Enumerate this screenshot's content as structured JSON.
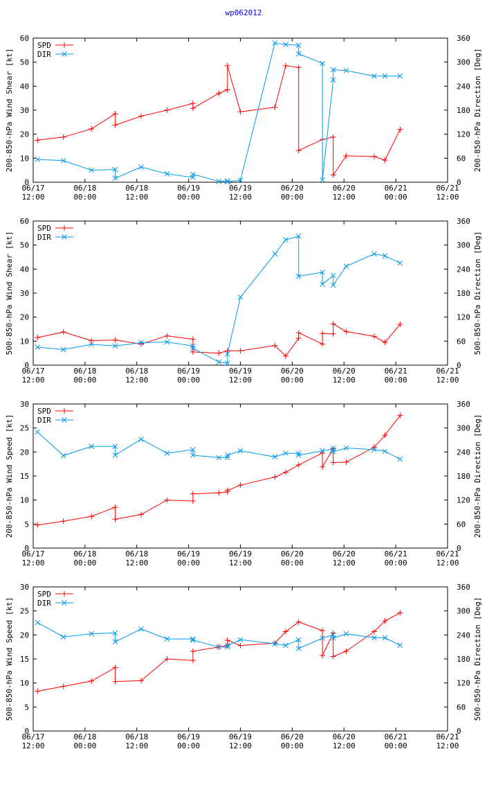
{
  "page": {
    "title": "wp062012"
  },
  "colors": {
    "spd": "#ff0000",
    "dir": "#0099ee",
    "axis": "#000000"
  },
  "chart_data": [
    {
      "type": "line",
      "title": "",
      "ylabel_left": "200-850-hPa Wind Shear [kt]",
      "ylabel_right": "200-850-hPa Direction [Deg]",
      "ylim_left": [
        0,
        60
      ],
      "yticks_left": [
        "0",
        "10",
        "20",
        "30",
        "40",
        "50",
        "60"
      ],
      "ylim_right": [
        0,
        360
      ],
      "yticks_right": [
        "0",
        "60",
        "120",
        "180",
        "240",
        "300",
        "360"
      ],
      "xlim_hours": [
        0,
        96
      ],
      "xticks": [
        {
          "date": "06/17",
          "time": "12:00"
        },
        {
          "date": "06/18",
          "time": "00:00"
        },
        {
          "date": "06/18",
          "time": "12:00"
        },
        {
          "date": "06/19",
          "time": "00:00"
        },
        {
          "date": "06/19",
          "time": "12:00"
        },
        {
          "date": "06/20",
          "time": "00:00"
        },
        {
          "date": "06/20",
          "time": "12:00"
        },
        {
          "date": "06/21",
          "time": "00:00"
        },
        {
          "date": "06/21",
          "time": "12:00"
        }
      ],
      "legend": [
        "SPD",
        "DIR"
      ],
      "series": [
        {
          "name": "SPD",
          "axis": "left",
          "x": [
            1,
            7,
            13.5,
            19,
            19,
            25,
            31,
            37,
            37,
            43,
            45,
            45,
            48,
            56,
            58.5,
            61.5,
            61.5,
            67,
            69.5,
            69.5,
            72.5,
            79,
            81.5,
            85
          ],
          "y": [
            17.5,
            18.8,
            22.2,
            28.5,
            23.8,
            27.5,
            30.0,
            32.8,
            30.8,
            37.0,
            38.5,
            48.5,
            29.3,
            31.2,
            48.5,
            47.8,
            13.2,
            17.8,
            18.8,
            3.0,
            11.0,
            10.7,
            9.2,
            22.0
          ]
        },
        {
          "name": "DIR",
          "axis": "right",
          "x": [
            1,
            7,
            13.5,
            19,
            19,
            25,
            31,
            37,
            37,
            43,
            45,
            45,
            48,
            56,
            58.5,
            61.5,
            61.5,
            67,
            67,
            69.5,
            69.5,
            72.5,
            79,
            81.5,
            85
          ],
          "y": [
            57,
            54,
            30,
            32,
            10,
            38,
            21,
            12,
            20,
            2,
            3,
            1,
            5,
            348,
            344,
            342,
            321,
            297,
            6,
            256,
            281,
            279,
            265,
            265,
            265
          ]
        }
      ]
    },
    {
      "type": "line",
      "title": "",
      "ylabel_left": "500-850-hPa Wind Shear [kt]",
      "ylabel_right": "500-850-hPa Direction [Deg]",
      "ylim_left": [
        0,
        60
      ],
      "yticks_left": [
        "0",
        "10",
        "20",
        "30",
        "40",
        "50",
        "60"
      ],
      "ylim_right": [
        0,
        360
      ],
      "yticks_right": [
        "0",
        "60",
        "120",
        "180",
        "240",
        "300",
        "360"
      ],
      "xlim_hours": [
        0,
        96
      ],
      "xticks": [
        {
          "date": "06/17",
          "time": "12:00"
        },
        {
          "date": "06/18",
          "time": "00:00"
        },
        {
          "date": "06/18",
          "time": "12:00"
        },
        {
          "date": "06/19",
          "time": "00:00"
        },
        {
          "date": "06/19",
          "time": "12:00"
        },
        {
          "date": "06/20",
          "time": "00:00"
        },
        {
          "date": "06/20",
          "time": "12:00"
        },
        {
          "date": "06/21",
          "time": "00:00"
        },
        {
          "date": "06/21",
          "time": "12:00"
        }
      ],
      "legend": [
        "SPD",
        "DIR"
      ],
      "series": [
        {
          "name": "SPD",
          "axis": "left",
          "x": [
            1,
            7,
            13.5,
            19,
            25,
            31,
            37,
            37,
            43,
            45,
            48,
            56,
            58.5,
            61.5,
            61.5,
            67,
            67,
            69.5,
            69.5,
            72.5,
            79,
            81.5,
            85
          ],
          "y": [
            11.5,
            13.8,
            10.2,
            10.5,
            8.8,
            12.2,
            10.8,
            5.5,
            5.0,
            6.0,
            6.0,
            8.2,
            3.8,
            11.2,
            13.5,
            8.8,
            13.2,
            13.0,
            17.2,
            14.0,
            12.0,
            9.5,
            17.0
          ]
        },
        {
          "name": "DIR",
          "axis": "right",
          "x": [
            1,
            7,
            13.5,
            19,
            25,
            31,
            37,
            37,
            43,
            45,
            45,
            48,
            56,
            58.5,
            61.5,
            61.5,
            67,
            67,
            69.5,
            69.5,
            72.5,
            79,
            81.5,
            85
          ],
          "y": [
            45,
            39,
            52,
            48,
            56,
            58,
            48,
            42,
            8,
            5,
            28,
            170,
            278,
            313,
            322,
            222,
            232,
            202,
            224,
            200,
            247,
            278,
            273,
            255
          ]
        }
      ]
    },
    {
      "type": "line",
      "title": "",
      "ylabel_left": "200-850-hPa Wind Speed [kt]",
      "ylabel_right": "200-850-hPa Direction [Deg]",
      "ylim_left": [
        0,
        30
      ],
      "yticks_left": [
        "0",
        "5",
        "10",
        "15",
        "20",
        "25",
        "30"
      ],
      "ylim_right": [
        0,
        360
      ],
      "yticks_right": [
        "0",
        "60",
        "120",
        "180",
        "240",
        "300",
        "360"
      ],
      "xlim_hours": [
        0,
        96
      ],
      "xticks": [
        {
          "date": "06/17",
          "time": "12:00"
        },
        {
          "date": "06/18",
          "time": "00:00"
        },
        {
          "date": "06/18",
          "time": "12:00"
        },
        {
          "date": "06/19",
          "time": "00:00"
        },
        {
          "date": "06/19",
          "time": "12:00"
        },
        {
          "date": "06/20",
          "time": "00:00"
        },
        {
          "date": "06/20",
          "time": "12:00"
        },
        {
          "date": "06/21",
          "time": "00:00"
        },
        {
          "date": "06/21",
          "time": "12:00"
        }
      ],
      "legend": [
        "SPD",
        "DIR"
      ],
      "series": [
        {
          "name": "SPD",
          "axis": "left",
          "x": [
            1,
            7,
            13.5,
            19,
            19,
            25,
            31,
            37,
            37,
            43,
            45,
            45,
            48,
            56,
            58.5,
            61.5,
            67,
            67,
            69.5,
            69.5,
            72.5,
            79,
            81.5,
            85
          ],
          "y": [
            4.8,
            5.6,
            6.6,
            8.5,
            6.0,
            7.0,
            10.0,
            9.8,
            11.3,
            11.5,
            11.7,
            12.0,
            13.1,
            14.8,
            15.8,
            17.3,
            19.8,
            16.9,
            20.7,
            17.8,
            17.9,
            21.0,
            23.5,
            27.6
          ]
        },
        {
          "name": "DIR",
          "axis": "right",
          "x": [
            1,
            7,
            13.5,
            19,
            19,
            25,
            31,
            37,
            37,
            43,
            45,
            45,
            48,
            56,
            58.5,
            61.5,
            61.5,
            67,
            69.5,
            69.5,
            72.5,
            79,
            81.5,
            85
          ],
          "y": [
            290,
            231,
            254,
            254,
            232,
            272,
            237,
            246,
            232,
            226,
            226,
            232,
            243,
            228,
            237,
            237,
            232,
            243,
            248,
            241,
            250,
            246,
            242,
            222
          ]
        }
      ]
    },
    {
      "type": "line",
      "title": "",
      "ylabel_left": "500-850-hPa Wind Speed [kt]",
      "ylabel_right": "500-850-hPa Direction [Deg]",
      "ylim_left": [
        0,
        30
      ],
      "yticks_left": [
        "0",
        "5",
        "10",
        "15",
        "20",
        "25",
        "30"
      ],
      "ylim_right": [
        0,
        360
      ],
      "yticks_right": [
        "0",
        "60",
        "120",
        "180",
        "240",
        "300",
        "360"
      ],
      "xlim_hours": [
        0,
        96
      ],
      "xticks": [
        {
          "date": "06/17",
          "time": "12:00"
        },
        {
          "date": "06/18",
          "time": "00:00"
        },
        {
          "date": "06/18",
          "time": "12:00"
        },
        {
          "date": "06/19",
          "time": "00:00"
        },
        {
          "date": "06/19",
          "time": "12:00"
        },
        {
          "date": "06/20",
          "time": "00:00"
        },
        {
          "date": "06/20",
          "time": "12:00"
        },
        {
          "date": "06/21",
          "time": "00:00"
        },
        {
          "date": "06/21",
          "time": "12:00"
        }
      ],
      "legend": [
        "SPD",
        "DIR"
      ],
      "series": [
        {
          "name": "SPD",
          "axis": "left",
          "x": [
            1,
            7,
            13.5,
            19,
            19,
            25,
            31,
            37,
            37,
            43,
            45,
            45,
            48,
            56,
            58.5,
            61.5,
            67,
            67,
            69.5,
            69.5,
            72.5,
            79,
            81.5,
            85
          ],
          "y": [
            8.3,
            9.3,
            10.4,
            13.2,
            10.3,
            10.5,
            15.0,
            14.7,
            16.6,
            17.5,
            17.8,
            18.9,
            17.8,
            18.3,
            20.7,
            22.7,
            20.9,
            15.7,
            20.4,
            15.5,
            16.6,
            20.7,
            22.9,
            24.6
          ]
        },
        {
          "name": "DIR",
          "axis": "right",
          "x": [
            1,
            7,
            13.5,
            19,
            19,
            25,
            31,
            37,
            37,
            43,
            45,
            45,
            48,
            56,
            58.5,
            61.5,
            61.5,
            67,
            69.5,
            69.5,
            72.5,
            79,
            81.5,
            85
          ],
          "y": [
            271,
            235,
            243,
            245,
            223,
            255,
            230,
            230,
            227,
            210,
            210,
            214,
            228,
            218,
            214,
            228,
            206,
            232,
            240,
            232,
            243,
            233,
            233,
            214
          ]
        }
      ]
    }
  ]
}
